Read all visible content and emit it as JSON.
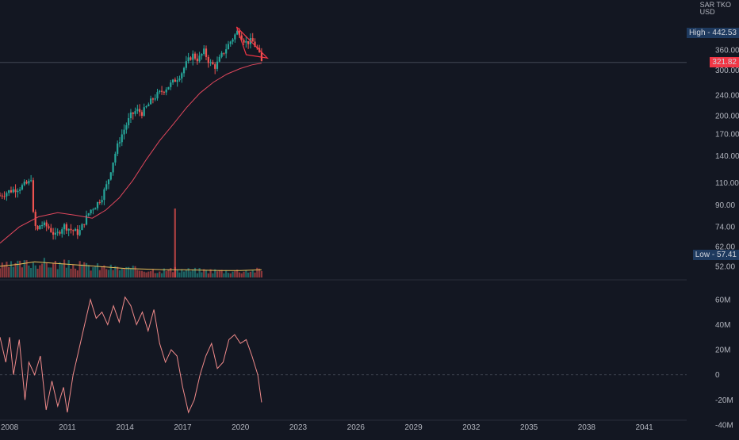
{
  "header": {
    "symbol": "SAR TKO",
    "currency": "USD"
  },
  "price_tags": {
    "high_label": "High - 442.53",
    "current_label": "321.82",
    "low_label": "Low - 57.41"
  },
  "colors": {
    "background": "#131722",
    "up": "#26a69a",
    "down": "#ef5350",
    "ma_line": "#e0475c",
    "volume_ma": "#e8c05a",
    "oscillator": "#f08a8a",
    "triangle": "#f23645",
    "high_tag": "#1e3a5f",
    "current_tag": "#f23645",
    "low_tag": "#1e3a5f"
  },
  "chart_data": [
    {
      "type": "candlestick",
      "title": "",
      "price_axis_ticks": [
        "360.00",
        "300.00",
        "240.00",
        "200.00",
        "170.00",
        "140.00",
        "110.00",
        "90.00",
        "74.00",
        "62.00",
        "52.00"
      ],
      "price_axis_scale": "log",
      "x_ticks": [
        "2008",
        "2011",
        "2014",
        "2017",
        "2020",
        "2023",
        "2026",
        "2029",
        "2032",
        "2035",
        "2038",
        "2041"
      ],
      "x_range": [
        2007.5,
        2043.2
      ],
      "high": 442.53,
      "low": 57.41,
      "last": 321.82,
      "price_waypoints": [
        [
          2007.5,
          98
        ],
        [
          2008.0,
          102
        ],
        [
          2008.5,
          105
        ],
        [
          2009.0,
          110
        ],
        [
          2009.1,
          120
        ],
        [
          2009.2,
          85
        ],
        [
          2009.4,
          70
        ],
        [
          2009.6,
          76
        ],
        [
          2010.0,
          74
        ],
        [
          2010.4,
          68
        ],
        [
          2010.8,
          75
        ],
        [
          2011.2,
          72
        ],
        [
          2011.6,
          70
        ],
        [
          2011.9,
          78
        ],
        [
          2012.2,
          86
        ],
        [
          2012.5,
          90
        ],
        [
          2012.8,
          97
        ],
        [
          2013.1,
          110
        ],
        [
          2013.4,
          135
        ],
        [
          2013.7,
          160
        ],
        [
          2014.0,
          180
        ],
        [
          2014.3,
          200
        ],
        [
          2014.6,
          210
        ],
        [
          2014.9,
          205
        ],
        [
          2015.2,
          220
        ],
        [
          2015.5,
          235
        ],
        [
          2015.8,
          245
        ],
        [
          2016.1,
          255
        ],
        [
          2016.5,
          270
        ],
        [
          2016.9,
          290
        ],
        [
          2017.2,
          320
        ],
        [
          2017.5,
          345
        ],
        [
          2017.8,
          330
        ],
        [
          2018.1,
          355
        ],
        [
          2018.4,
          320
        ],
        [
          2018.7,
          310
        ],
        [
          2019.0,
          340
        ],
        [
          2019.3,
          370
        ],
        [
          2019.6,
          400
        ],
        [
          2019.9,
          430
        ],
        [
          2020.1,
          400
        ],
        [
          2020.3,
          385
        ],
        [
          2020.6,
          390
        ],
        [
          2020.9,
          360
        ],
        [
          2021.1,
          322
        ]
      ],
      "ma_waypoints": [
        [
          2007.5,
          64
        ],
        [
          2008.5,
          74
        ],
        [
          2009.5,
          81
        ],
        [
          2010.5,
          84
        ],
        [
          2011.5,
          82
        ],
        [
          2012.3,
          80
        ],
        [
          2013.0,
          86
        ],
        [
          2013.7,
          96
        ],
        [
          2014.4,
          112
        ],
        [
          2015.1,
          135
        ],
        [
          2015.8,
          160
        ],
        [
          2016.5,
          185
        ],
        [
          2017.2,
          215
        ],
        [
          2017.9,
          245
        ],
        [
          2018.6,
          270
        ],
        [
          2019.3,
          290
        ],
        [
          2020.0,
          305
        ],
        [
          2020.6,
          315
        ],
        [
          2021.1,
          320
        ]
      ],
      "volume_ma_waypoints": [
        [
          2007.5,
          0.32
        ],
        [
          2008.5,
          0.38
        ],
        [
          2009.3,
          0.45
        ],
        [
          2010.0,
          0.42
        ],
        [
          2011.0,
          0.38
        ],
        [
          2012.0,
          0.34
        ],
        [
          2013.0,
          0.3
        ],
        [
          2014.0,
          0.26
        ],
        [
          2015.0,
          0.24
        ],
        [
          2016.0,
          0.22
        ],
        [
          2017.0,
          0.22
        ],
        [
          2018.0,
          0.21
        ],
        [
          2019.0,
          0.2
        ],
        [
          2020.0,
          0.2
        ],
        [
          2021.1,
          0.22
        ]
      ],
      "volume_spike": [
        2016.6,
        1.0
      ],
      "triangle_pattern": [
        [
          2019.8,
          442.53
        ],
        [
          2021.4,
          335
        ],
        [
          2020.3,
          345
        ]
      ]
    },
    {
      "type": "line",
      "title": "",
      "y_ticks": [
        "60M",
        "40M",
        "20M",
        "0",
        "-20M",
        "-40M"
      ],
      "y_tick_values": [
        60,
        40,
        20,
        0,
        -20,
        -40
      ],
      "ylim": [
        -40,
        70
      ],
      "series": [
        {
          "values": [
            [
              2007.5,
              30
            ],
            [
              2007.8,
              10
            ],
            [
              2008.0,
              30
            ],
            [
              2008.2,
              0
            ],
            [
              2008.5,
              28
            ],
            [
              2008.8,
              -20
            ],
            [
              2009.0,
              10
            ],
            [
              2009.3,
              0
            ],
            [
              2009.6,
              15
            ],
            [
              2009.9,
              -28
            ],
            [
              2010.2,
              -5
            ],
            [
              2010.5,
              -25
            ],
            [
              2010.8,
              -10
            ],
            [
              2011.0,
              -30
            ],
            [
              2011.3,
              0
            ],
            [
              2011.6,
              20
            ],
            [
              2011.9,
              40
            ],
            [
              2012.2,
              60
            ],
            [
              2012.5,
              45
            ],
            [
              2012.8,
              50
            ],
            [
              2013.1,
              40
            ],
            [
              2013.4,
              55
            ],
            [
              2013.7,
              42
            ],
            [
              2014.0,
              62
            ],
            [
              2014.3,
              55
            ],
            [
              2014.6,
              40
            ],
            [
              2014.9,
              50
            ],
            [
              2015.2,
              35
            ],
            [
              2015.5,
              52
            ],
            [
              2015.8,
              25
            ],
            [
              2016.1,
              10
            ],
            [
              2016.4,
              20
            ],
            [
              2016.7,
              15
            ],
            [
              2017.0,
              -10
            ],
            [
              2017.3,
              -30
            ],
            [
              2017.6,
              -20
            ],
            [
              2017.9,
              0
            ],
            [
              2018.2,
              15
            ],
            [
              2018.5,
              25
            ],
            [
              2018.8,
              5
            ],
            [
              2019.1,
              10
            ],
            [
              2019.4,
              28
            ],
            [
              2019.7,
              32
            ],
            [
              2020.0,
              25
            ],
            [
              2020.3,
              28
            ],
            [
              2020.6,
              15
            ],
            [
              2020.9,
              0
            ],
            [
              2021.1,
              -22
            ]
          ]
        }
      ]
    }
  ]
}
